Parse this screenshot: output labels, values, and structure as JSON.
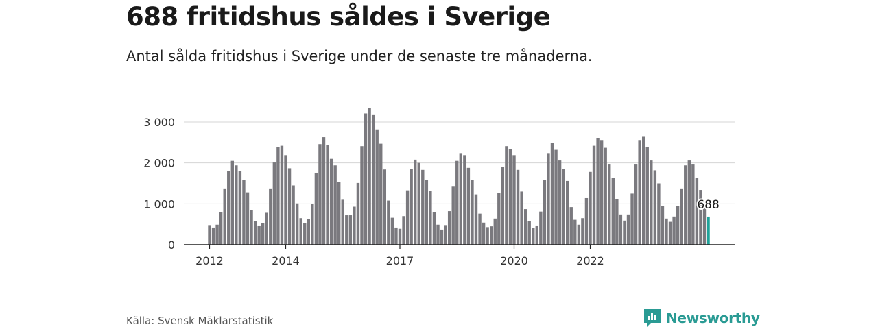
{
  "header": {
    "title": "688 fritidshus såldes i Sverige",
    "subtitle": "Antal sålda fritidshus i Sverige under de senaste tre månaderna."
  },
  "footer": {
    "source": "Källa: Svensk Mäklarstatistik",
    "brand": "Newsworthy"
  },
  "colors": {
    "bar": "#7a797e",
    "highlight": "#1fa39a",
    "grid": "#d4d4d4",
    "axis": "#222222",
    "brand": "#2a9b94"
  },
  "chart_data": {
    "type": "bar",
    "title": "688 fritidshus såldes i Sverige",
    "subtitle": "Antal sålda fritidshus i Sverige under de senaste tre månaderna.",
    "ylim": [
      0,
      3300
    ],
    "yticks": [
      0,
      1000,
      2000,
      3000
    ],
    "ytick_labels": [
      "0",
      "1 000",
      "2 000",
      "3 000"
    ],
    "xtick_labels": [
      {
        "label": "2012",
        "index": 0
      },
      {
        "label": "2014",
        "index": 20
      },
      {
        "label": "2017",
        "index": 50
      },
      {
        "label": "2020",
        "index": 80
      },
      {
        "label": "2022",
        "index": 100
      }
    ],
    "grid": true,
    "highlight_label": "688",
    "values": [
      480,
      420,
      490,
      800,
      1360,
      1800,
      2050,
      1940,
      1810,
      1590,
      1280,
      850,
      580,
      470,
      520,
      780,
      1360,
      2010,
      2390,
      2420,
      2190,
      1870,
      1450,
      1010,
      650,
      520,
      630,
      1000,
      1760,
      2460,
      2630,
      2440,
      2100,
      1940,
      1530,
      1100,
      720,
      720,
      930,
      1510,
      2410,
      3210,
      3340,
      3170,
      2820,
      2470,
      1840,
      1080,
      660,
      420,
      390,
      700,
      1330,
      1860,
      2080,
      2000,
      1830,
      1590,
      1310,
      800,
      490,
      370,
      480,
      820,
      1420,
      2050,
      2240,
      2190,
      1880,
      1590,
      1230,
      760,
      540,
      430,
      450,
      640,
      1260,
      1910,
      2410,
      2340,
      2190,
      1830,
      1300,
      870,
      570,
      410,
      470,
      810,
      1590,
      2240,
      2490,
      2320,
      2060,
      1860,
      1560,
      920,
      610,
      490,
      650,
      1140,
      1780,
      2420,
      2610,
      2560,
      2370,
      1960,
      1630,
      1110,
      740,
      590,
      740,
      1250,
      1960,
      2560,
      2640,
      2380,
      2060,
      1820,
      1500,
      940,
      640,
      560,
      690,
      940,
      1360,
      1940,
      2060,
      1960,
      1640,
      1340,
      1000,
      688
    ],
    "highlight_index": 131
  }
}
